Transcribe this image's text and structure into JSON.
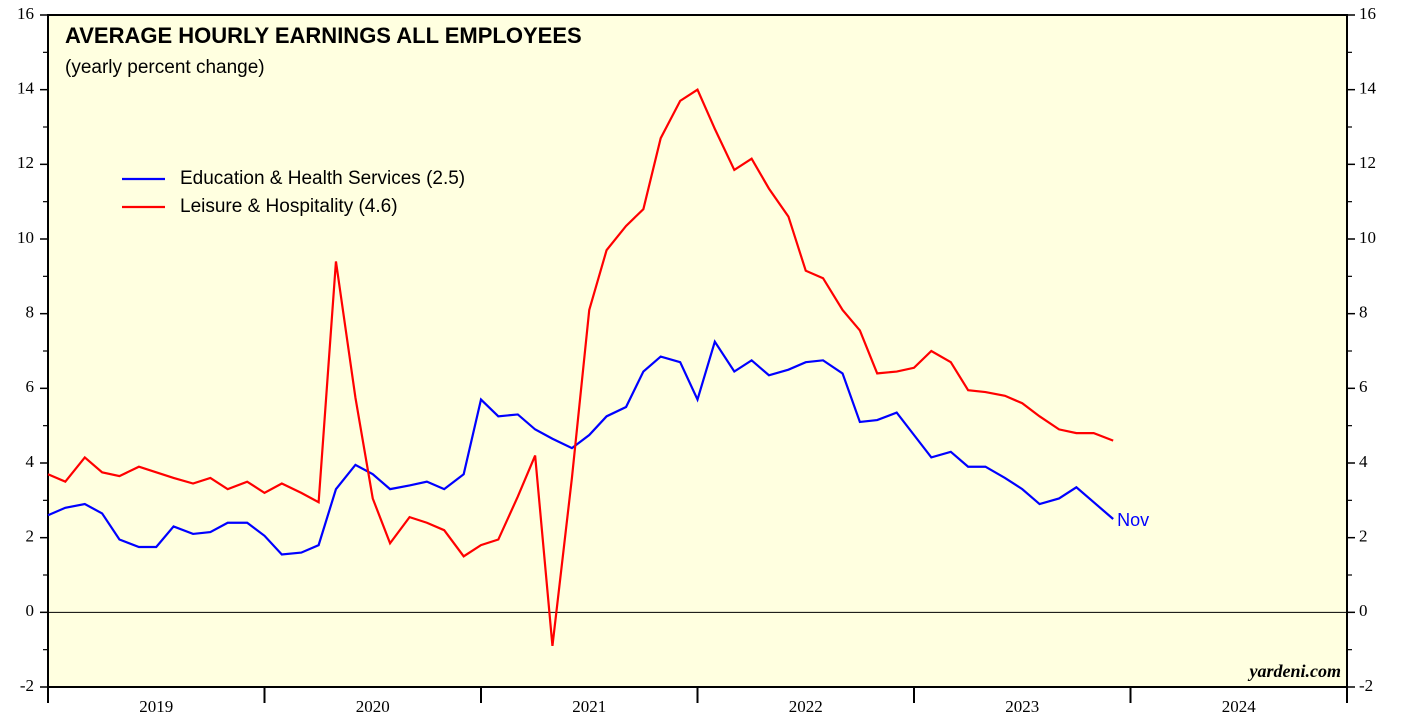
{
  "chart_data": {
    "type": "line",
    "title": "AVERAGE HOURLY EARNINGS ALL EMPLOYEES",
    "subtitle": "(yearly percent change)",
    "source": "yardeni.com",
    "annotations": [
      {
        "text": "Nov"
      }
    ],
    "legend": "upper left",
    "background": "#ffffe0",
    "x": [
      2019,
      2019.08,
      2019.17,
      2019.25,
      2019.33,
      2019.42,
      2019.5,
      2019.58,
      2019.67,
      2019.75,
      2019.83,
      2019.92,
      2020,
      2020.08,
      2020.17,
      2020.25,
      2020.33,
      2020.42,
      2020.5,
      2020.58,
      2020.67,
      2020.75,
      2020.83,
      2020.92,
      2021,
      2021.08,
      2021.17,
      2021.25,
      2021.33,
      2021.42,
      2021.5,
      2021.58,
      2021.67,
      2021.75,
      2021.83,
      2021.92,
      2022,
      2022.08,
      2022.17,
      2022.25,
      2022.33,
      2022.42,
      2022.5,
      2022.58,
      2022.67,
      2022.75,
      2022.83,
      2022.92,
      2023,
      2023.08,
      2023.17,
      2023.25,
      2023.33,
      2023.42,
      2023.5,
      2023.58,
      2023.67,
      2023.75,
      2023.83,
      2023.92
    ],
    "series": [
      {
        "name": "Education & Health Services (2.5)",
        "color": "#0000ff",
        "values": [
          2.6,
          2.8,
          2.9,
          2.65,
          1.95,
          1.75,
          1.75,
          2.3,
          2.1,
          2.15,
          2.4,
          2.4,
          2.05,
          1.55,
          1.6,
          1.8,
          3.3,
          3.95,
          3.7,
          3.3,
          3.4,
          3.5,
          3.3,
          3.7,
          5.7,
          5.25,
          5.3,
          4.9,
          4.65,
          4.4,
          4.75,
          5.25,
          5.5,
          6.45,
          6.85,
          6.7,
          5.7,
          7.25,
          6.45,
          6.75,
          6.35,
          6.5,
          6.7,
          6.75,
          6.4,
          5.1,
          5.15,
          5.35,
          4.75,
          4.15,
          4.3,
          3.9,
          3.9,
          3.6,
          3.3,
          2.9,
          3.05,
          3.35,
          2.95,
          2.5
        ]
      },
      {
        "name": "Leisure & Hospitality (4.6)",
        "color": "#ff0000",
        "values": [
          3.7,
          3.5,
          4.15,
          3.75,
          3.65,
          3.9,
          3.75,
          3.6,
          3.45,
          3.6,
          3.3,
          3.5,
          3.2,
          3.45,
          3.2,
          2.95,
          9.4,
          5.75,
          3.05,
          1.85,
          2.55,
          2.4,
          2.2,
          1.5,
          1.8,
          1.95,
          3.1,
          4.2,
          -0.9,
          3.6,
          8.1,
          9.7,
          10.35,
          10.8,
          12.7,
          13.7,
          14.0,
          12.95,
          11.85,
          12.15,
          11.35,
          10.6,
          9.15,
          8.95,
          8.1,
          7.55,
          6.4,
          6.45,
          6.55,
          7.0,
          6.7,
          5.95,
          5.9,
          5.8,
          5.6,
          5.25,
          4.9,
          4.8,
          4.8,
          4.6
        ]
      }
    ],
    "xlim": [
      2019,
      2025
    ],
    "xticks": [
      2019,
      2020,
      2021,
      2022,
      2023,
      2024,
      2025
    ],
    "xtick_labels": [
      {
        "value": 2019.5,
        "label": "2019"
      },
      {
        "value": 2020.5,
        "label": "2020"
      },
      {
        "value": 2021.5,
        "label": "2021"
      },
      {
        "value": 2022.5,
        "label": "2022"
      },
      {
        "value": 2023.5,
        "label": "2023"
      },
      {
        "value": 2024.5,
        "label": "2024"
      }
    ],
    "ylim": [
      -2,
      16
    ],
    "yticks": [
      -2,
      0,
      2,
      4,
      6,
      8,
      10,
      12,
      14,
      16
    ],
    "yminorticks": [
      -1,
      1,
      3,
      5,
      7,
      9,
      11,
      13,
      15
    ],
    "zero_line": true
  }
}
